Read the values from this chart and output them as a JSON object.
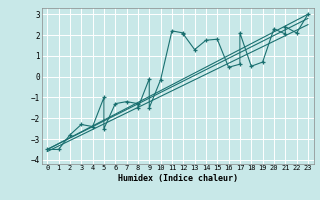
{
  "xlabel": "Humidex (Indice chaleur)",
  "ylabel": "",
  "bg_color": "#c8e8e8",
  "grid_color": "#ffffff",
  "line_color": "#1a7070",
  "xlim": [
    -0.5,
    23.5
  ],
  "ylim": [
    -4.2,
    3.3
  ],
  "xticks": [
    0,
    1,
    2,
    3,
    4,
    5,
    6,
    7,
    8,
    9,
    10,
    11,
    12,
    13,
    14,
    15,
    16,
    17,
    18,
    19,
    20,
    21,
    22,
    23
  ],
  "yticks": [
    -4,
    -3,
    -2,
    -1,
    0,
    1,
    2,
    3
  ],
  "scatter_x": [
    0,
    1,
    2,
    3,
    4,
    5,
    5,
    6,
    7,
    8,
    8,
    9,
    9,
    10,
    11,
    12,
    12,
    13,
    14,
    15,
    16,
    17,
    17,
    18,
    19,
    20,
    21,
    21,
    22,
    23
  ],
  "scatter_y": [
    -3.5,
    -3.5,
    -2.8,
    -2.3,
    -2.4,
    -1.0,
    -2.5,
    -1.3,
    -1.2,
    -1.3,
    -1.5,
    -0.1,
    -1.5,
    -0.15,
    2.2,
    2.1,
    2.05,
    1.3,
    1.75,
    1.8,
    0.45,
    0.6,
    2.1,
    0.5,
    0.7,
    2.3,
    2.05,
    2.4,
    2.1,
    3.0
  ],
  "line1_x": [
    0,
    23
  ],
  "line1_y": [
    -3.5,
    2.8
  ],
  "line2_x": [
    0,
    23
  ],
  "line2_y": [
    -3.5,
    3.0
  ],
  "line3_x": [
    0,
    23
  ],
  "line3_y": [
    -3.6,
    2.5
  ]
}
